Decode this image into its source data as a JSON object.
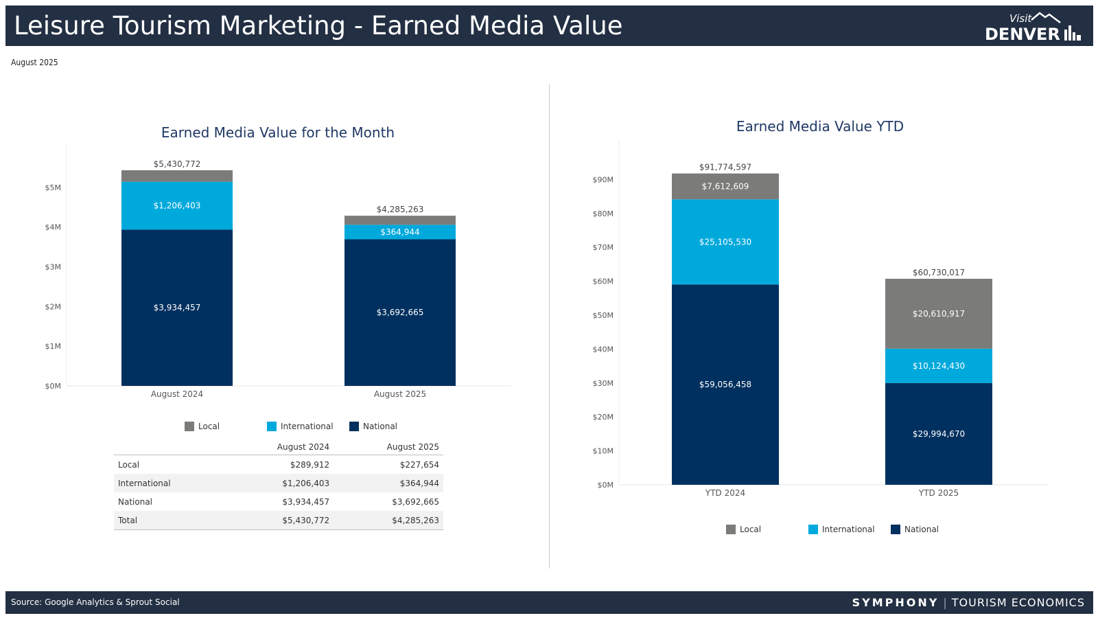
{
  "header": {
    "title": "Leisure Tourism Marketing - Earned Media Value",
    "logo_top": "Visit",
    "logo_main": "DENVER"
  },
  "subtitle": "August 2025",
  "colors": {
    "header_bg": "#232f42",
    "local": "#7b7b79",
    "international": "#00a9dc",
    "national": "#00305f",
    "title": "#1f3864"
  },
  "chart_data": [
    {
      "type": "bar",
      "stacked": true,
      "title": "Earned Media Value for the Month",
      "categories": [
        "August 2024",
        "August 2025"
      ],
      "series": [
        {
          "name": "National",
          "values": [
            3934457,
            3692665
          ],
          "labels": [
            "$3,934,457",
            "$3,692,665"
          ]
        },
        {
          "name": "International",
          "values": [
            1206403,
            364944
          ],
          "labels": [
            "$1,206,403",
            "$364,944"
          ]
        },
        {
          "name": "Local",
          "values": [
            289912,
            227654
          ],
          "labels": [
            "",
            ""
          ]
        }
      ],
      "totals": [
        "$5,430,772",
        "$4,285,263"
      ],
      "yticks": [
        0,
        1000000,
        2000000,
        3000000,
        4000000,
        5000000
      ],
      "ytick_labels": [
        "$0M",
        "$1M",
        "$2M",
        "$3M",
        "$4M",
        "$5M"
      ],
      "ylim": [
        0,
        6000000
      ],
      "legend": [
        "Local",
        "International",
        "National"
      ]
    },
    {
      "type": "bar",
      "stacked": true,
      "title": "Earned Media Value YTD",
      "categories": [
        "YTD 2024",
        "YTD 2025"
      ],
      "series": [
        {
          "name": "National",
          "values": [
            59056458,
            29994670
          ],
          "labels": [
            "$59,056,458",
            "$29,994,670"
          ]
        },
        {
          "name": "International",
          "values": [
            25105530,
            10124430
          ],
          "labels": [
            "$25,105,530",
            "$10,124,430"
          ]
        },
        {
          "name": "Local",
          "values": [
            7612609,
            20610917
          ],
          "labels": [
            "$7,612,609",
            "$20,610,917"
          ]
        }
      ],
      "totals": [
        "$91,774,597",
        "$60,730,017"
      ],
      "yticks": [
        0,
        10000000,
        20000000,
        30000000,
        40000000,
        50000000,
        60000000,
        70000000,
        80000000,
        90000000
      ],
      "ytick_labels": [
        "$0M",
        "$10M",
        "$20M",
        "$30M",
        "$40M",
        "$50M",
        "$60M",
        "$70M",
        "$80M",
        "$90M"
      ],
      "ylim": [
        0,
        100000000
      ],
      "legend": [
        "Local",
        "International",
        "National"
      ]
    }
  ],
  "table": {
    "headers": [
      "",
      "August 2024",
      "August 2025"
    ],
    "rows": [
      [
        "Local",
        "$289,912",
        "$227,654"
      ],
      [
        "International",
        "$1,206,403",
        "$364,944"
      ],
      [
        "National",
        "$3,934,457",
        "$3,692,665"
      ],
      [
        "Total",
        "$5,430,772",
        "$4,285,263"
      ]
    ]
  },
  "footer": {
    "source": "Source: Google Analytics & Sprout Social",
    "brand_bold": "SYMPHONY",
    "brand_rest": "TOURISM ECONOMICS"
  }
}
